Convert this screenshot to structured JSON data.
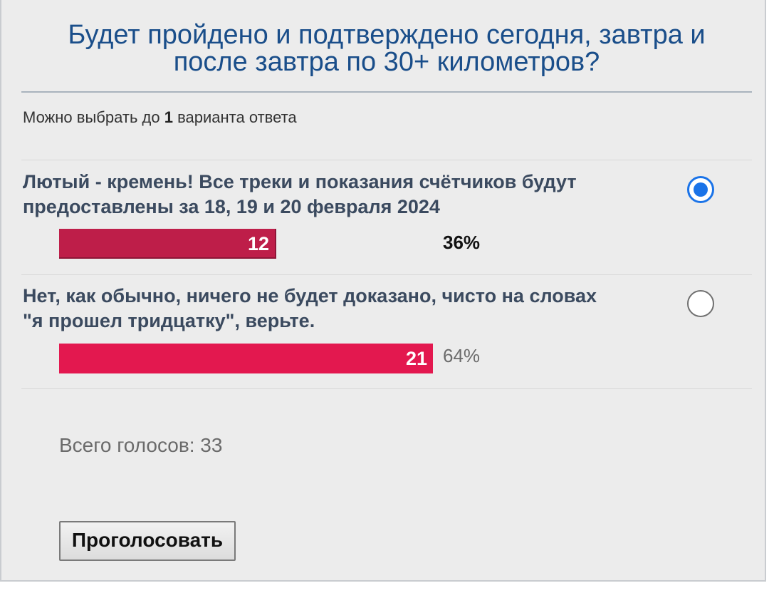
{
  "poll": {
    "title_line1": "Будет пройдено и подтверждено сегодня, завтра и",
    "title_line2": "после завтра по 30+ километров?",
    "hint_prefix": "Можно выбрать до ",
    "hint_count": "1",
    "hint_suffix": " варианта ответа",
    "options": [
      {
        "text_line1": "Лютый - кремень! Все треки и показания счётчиков будут",
        "text_line2": "предоставлены за 18, 19 и 20 февраля 2024",
        "votes": "12",
        "percent": "36%",
        "fraction": 0.36,
        "selected": true,
        "bar_color": "#be1e49"
      },
      {
        "text_line1": "Нет, как обычно, ничего не будет доказано, чисто на словах",
        "text_line2": "\"я прошел тридцатку\", верьте.",
        "votes": "21",
        "percent": "64%",
        "fraction": 0.64,
        "selected": false,
        "bar_color": "#e3184f"
      }
    ],
    "total_votes": "Всего голосов: 33",
    "vote_button": "Проголосовать",
    "title_color": "#1a4e8a",
    "radio_accent": "#1a73e8"
  }
}
